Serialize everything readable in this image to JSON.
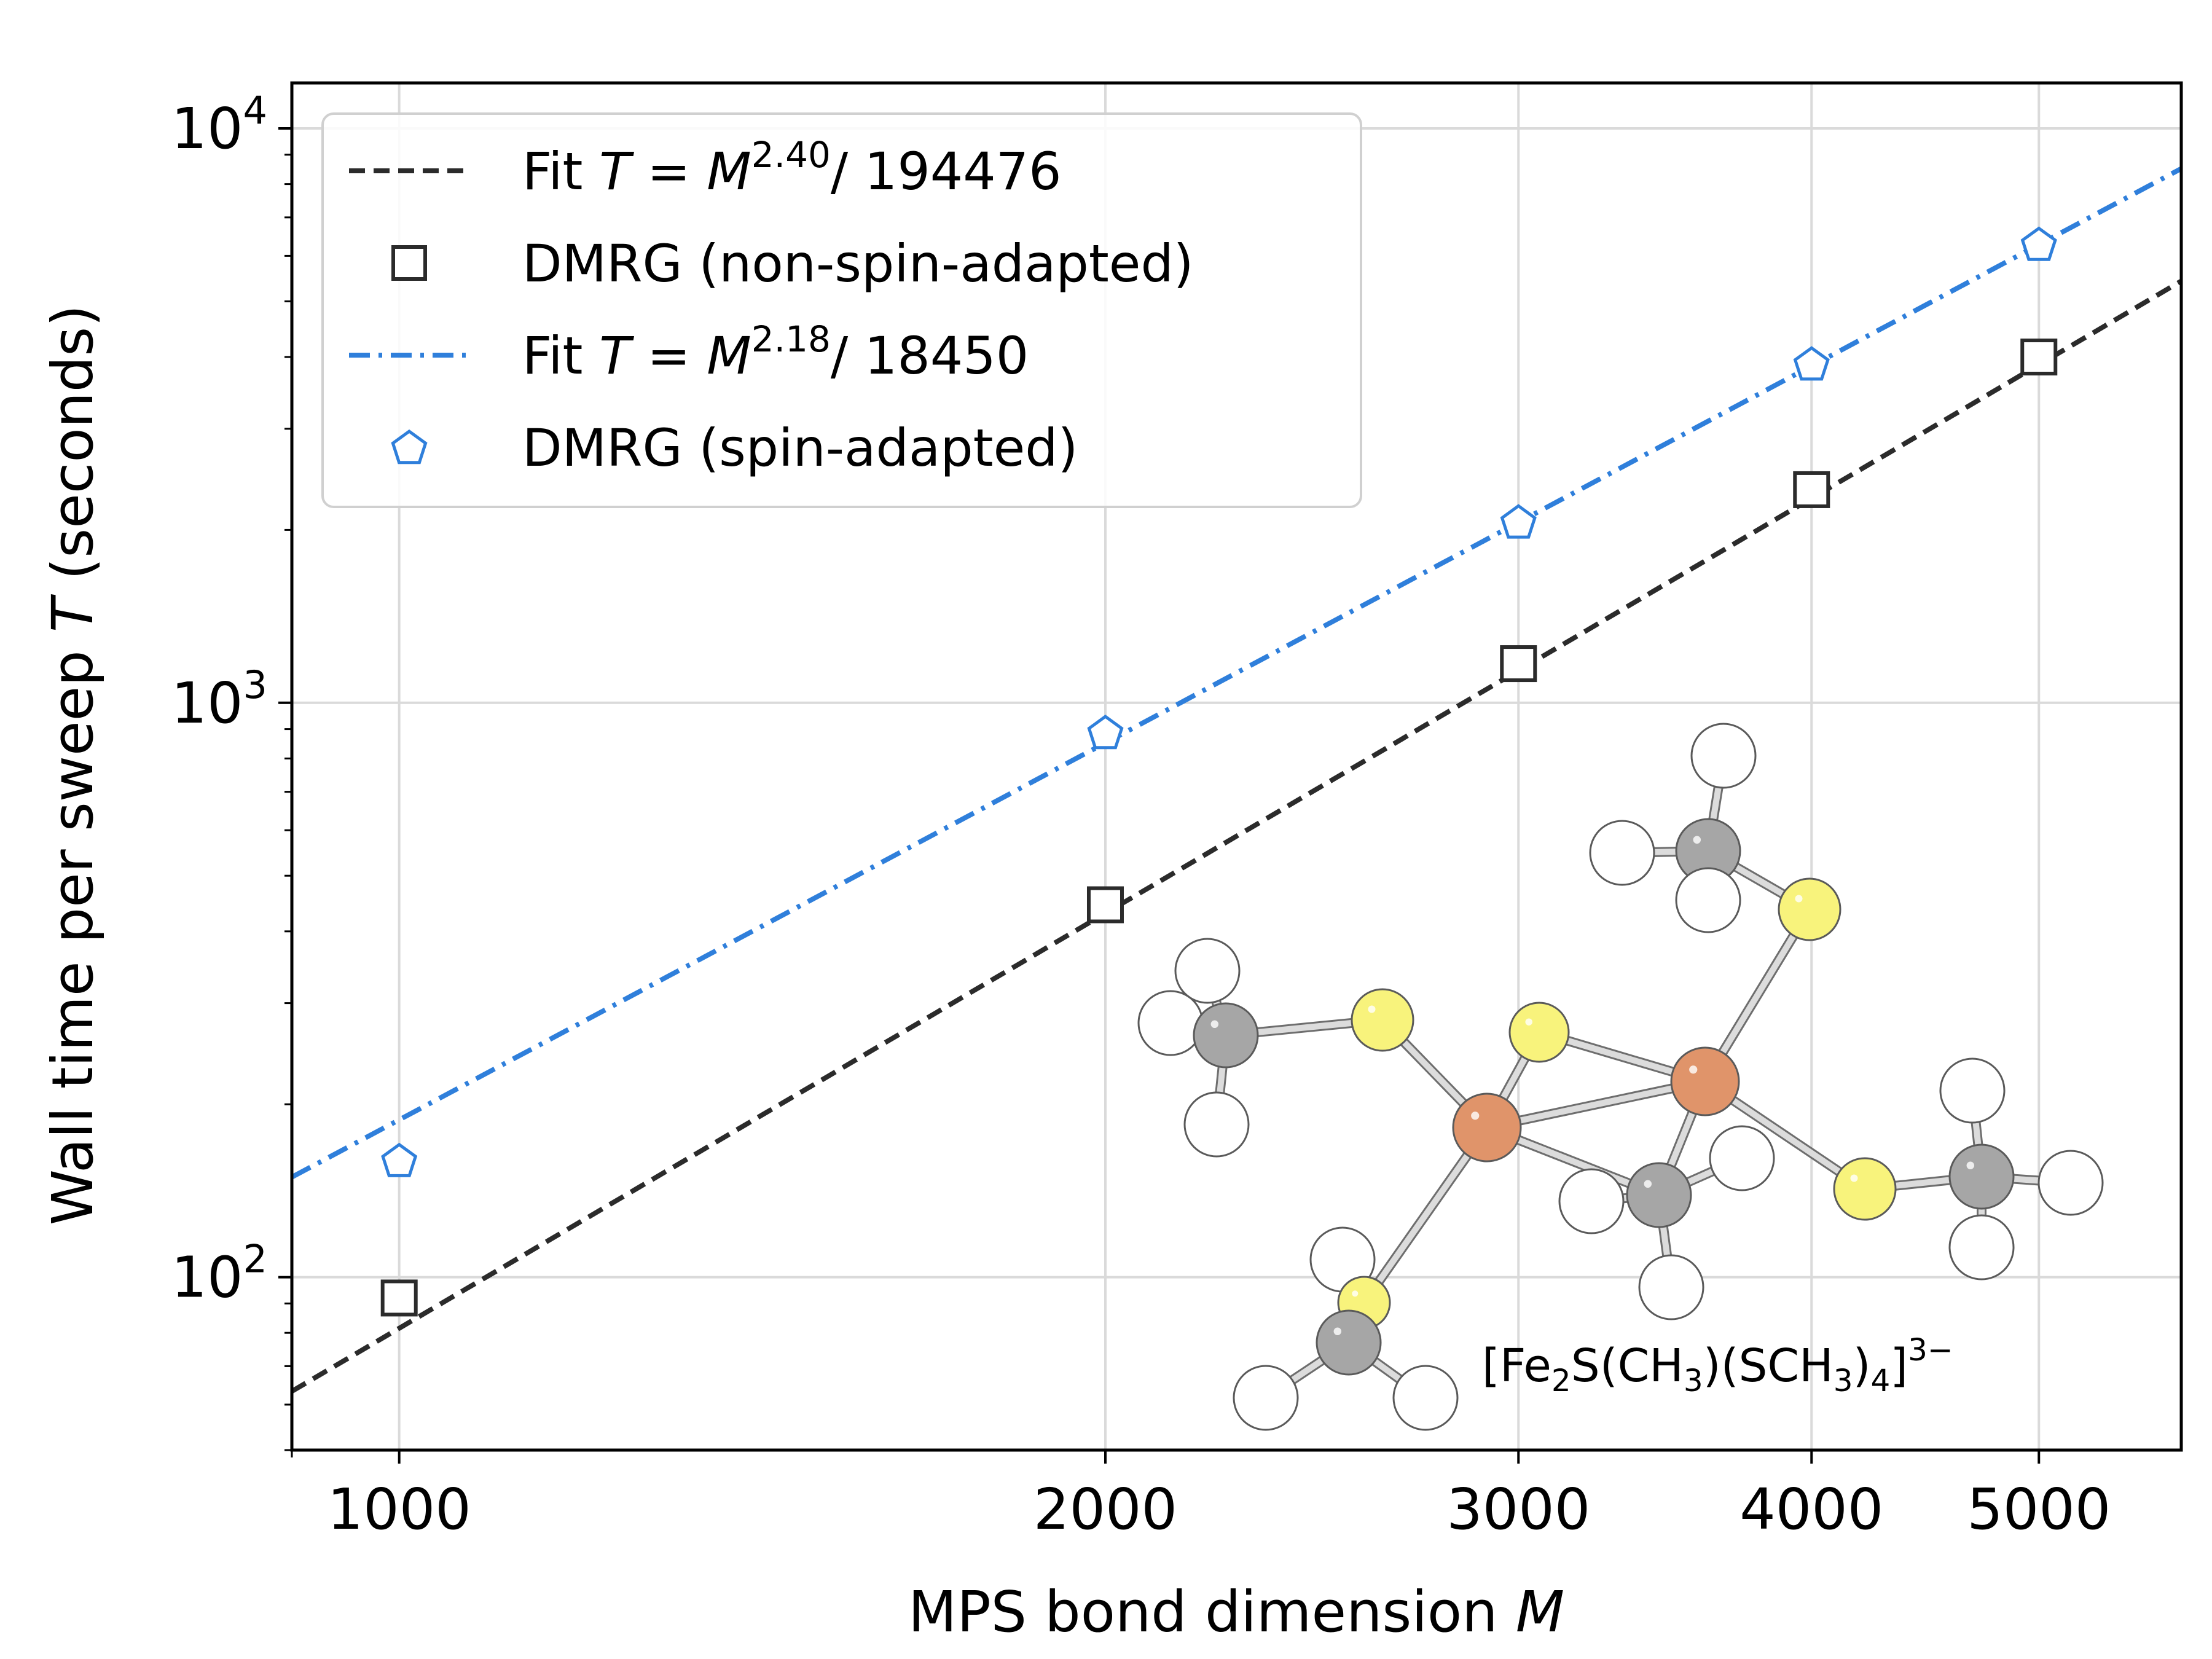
{
  "chart_data": {
    "type": "scatter",
    "scale": "log-log",
    "xlabel": {
      "text": "MPS bond dimension ",
      "var": "M"
    },
    "ylabel": {
      "text": "Wall time per sweep ",
      "var": "T",
      "unit": " (seconds)"
    },
    "xlim": [
      900,
      5750
    ],
    "ylim": [
      50,
      12000
    ],
    "x_ticks": [
      1000,
      2000,
      3000,
      4000,
      5000
    ],
    "x_tick_labels": [
      "1000",
      "2000",
      "3000",
      "4000",
      "5000"
    ],
    "y_ticks": [
      100,
      1000,
      10000
    ],
    "y_tick_labels": [
      {
        "base": "10",
        "exp": "2"
      },
      {
        "base": "10",
        "exp": "3"
      },
      {
        "base": "10",
        "exp": "4"
      }
    ],
    "grid": true,
    "legend_position": "top-left",
    "series": [
      {
        "name": "Fit T = M^2.40 / 194476",
        "kind": "fit-line",
        "exponent": 2.4,
        "divisor": 194476,
        "color": "#2b2b2b",
        "style": "dashed",
        "label": {
          "prefix": "Fit ",
          "T": "T",
          "eq": " = ",
          "M": "M",
          "exp": "2.40",
          "suffix": "/ 194476"
        }
      },
      {
        "name": "DMRG (non-spin-adapted)",
        "kind": "markers",
        "marker": "square",
        "color": "#2b2b2b",
        "x": [
          1000,
          2000,
          3000,
          4000,
          5000
        ],
        "y": [
          92,
          445,
          1170,
          2350,
          4000
        ],
        "label": "DMRG (non-spin-adapted)"
      },
      {
        "name": "Fit T = M^2.18 / 18450",
        "kind": "fit-line",
        "exponent": 2.18,
        "divisor": 18450,
        "color": "#2f7fdb",
        "style": "dashdot",
        "label": {
          "prefix": "Fit ",
          "T": "T",
          "eq": " = ",
          "M": "M",
          "exp": "2.18",
          "suffix": "/ 18450"
        }
      },
      {
        "name": "DMRG (spin-adapted)",
        "kind": "markers",
        "marker": "pentagon",
        "color": "#2f7fdb",
        "x": [
          1000,
          2000,
          3000,
          4000,
          5000
        ],
        "y": [
          160,
          890,
          2070,
          3900,
          6300
        ],
        "label": "DMRG (spin-adapted)"
      }
    ],
    "annotation": {
      "open": "[Fe",
      "sub1": "2",
      "mid1": "S(CH",
      "sub2": "3",
      "mid2": ")(SCH",
      "sub3": "3",
      "mid3": ")",
      "sub4": "4",
      "close": "]",
      "sup": "3−"
    },
    "molecule_colors": {
      "fe": "#e0946a",
      "s": "#f8f37c",
      "c": "#a6a6a6",
      "h": "#ffffff",
      "bond": "#dcdcdc"
    }
  }
}
